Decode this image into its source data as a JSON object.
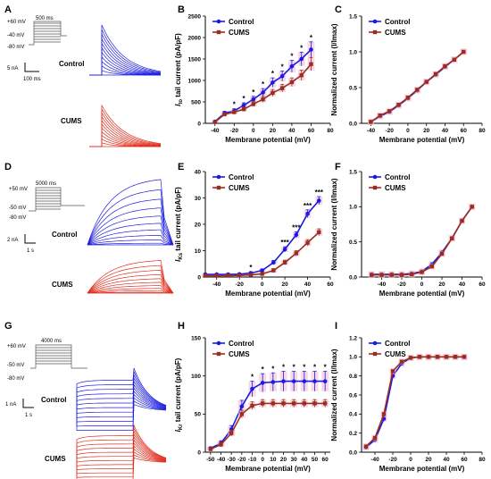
{
  "panels": [
    "A",
    "B",
    "C",
    "D",
    "E",
    "F",
    "G",
    "H",
    "I"
  ],
  "colors": {
    "control": "#1a1ae6",
    "cums": "#9b2d1f",
    "control_trace": "#2020e0",
    "cums_trace": "#e03020",
    "band": "#f4b8d0"
  },
  "traces": [
    {
      "protocol": {
        "v1": "+60 mV",
        "v2": "-40 mV",
        "v3": "-80 mV",
        "duration": "500 ms"
      },
      "scalebar": {
        "y": "5 nA",
        "x": "100 ms"
      },
      "group_labels": [
        "Control",
        "CUMS"
      ]
    },
    {
      "protocol": {
        "v1": "+50 mV",
        "v2": "-50 mV",
        "v3": "-80 mV",
        "duration": "5000 ms"
      },
      "scalebar": {
        "y": "2 nA",
        "x": "1 s"
      },
      "group_labels": [
        "Control",
        "CUMS"
      ]
    },
    {
      "protocol": {
        "v1": "+60 mV",
        "v2": "-50 mV",
        "v3": "-80 mV",
        "duration": "4000 ms"
      },
      "scalebar": {
        "y": "1 nA",
        "x": "1 s"
      },
      "group_labels": [
        "Control",
        "CUMS"
      ]
    }
  ],
  "chart_data": [
    {
      "id": "B",
      "type": "line",
      "ylabel_main": "I",
      "ylabel_sub": "to",
      "ylabel_rest": " tail current (pA/pF)",
      "xlabel": "Membrane potential (mV)",
      "xlim": [
        -50,
        80
      ],
      "ylim": [
        0,
        2500
      ],
      "xticks": [
        -40,
        -20,
        0,
        20,
        40,
        60,
        80
      ],
      "yticks": [
        0,
        500,
        1000,
        1500,
        2000,
        2500
      ],
      "x": [
        -40,
        -30,
        -20,
        -10,
        0,
        10,
        20,
        30,
        40,
        50,
        60
      ],
      "series": [
        {
          "name": "Control",
          "values": [
            40,
            240,
            290,
            420,
            560,
            720,
            950,
            1100,
            1330,
            1500,
            1720
          ],
          "err": [
            20,
            40,
            50,
            60,
            70,
            90,
            110,
            120,
            140,
            160,
            180
          ]
        },
        {
          "name": "CUMS",
          "values": [
            30,
            210,
            260,
            330,
            450,
            560,
            710,
            820,
            960,
            1120,
            1380
          ],
          "err": [
            15,
            30,
            40,
            50,
            60,
            70,
            80,
            90,
            100,
            120,
            150
          ]
        }
      ],
      "sig": [
        {
          "x": -20,
          "label": "*"
        },
        {
          "x": -10,
          "label": "*"
        },
        {
          "x": 0,
          "label": "*"
        },
        {
          "x": 10,
          "label": "*"
        },
        {
          "x": 20,
          "label": "*"
        },
        {
          "x": 30,
          "label": "*"
        },
        {
          "x": 40,
          "label": "*"
        },
        {
          "x": 50,
          "label": "*"
        },
        {
          "x": 60,
          "label": "*"
        }
      ],
      "legend": "top-left"
    },
    {
      "id": "C",
      "type": "line",
      "ylabel": "Normalized current (I/Imax)",
      "xlabel": "Membrane potential (mV)",
      "xlim": [
        -50,
        80
      ],
      "ylim": [
        0,
        1.5
      ],
      "xticks": [
        -40,
        -20,
        0,
        20,
        40,
        60,
        80
      ],
      "yticks": [
        0.0,
        0.5,
        1.0,
        1.5
      ],
      "ydec": 1,
      "x": [
        -40,
        -30,
        -20,
        -10,
        0,
        10,
        20,
        30,
        40,
        50,
        60
      ],
      "series": [
        {
          "name": "Control",
          "values": [
            0.02,
            0.1,
            0.16,
            0.25,
            0.35,
            0.46,
            0.58,
            0.68,
            0.79,
            0.89,
            1.0
          ]
        },
        {
          "name": "CUMS",
          "values": [
            0.02,
            0.11,
            0.17,
            0.26,
            0.36,
            0.47,
            0.58,
            0.69,
            0.8,
            0.89,
            1.0
          ]
        }
      ],
      "legend": "top-left"
    },
    {
      "id": "E",
      "type": "line",
      "ylabel_main": "I",
      "ylabel_sub": "Ks",
      "ylabel_rest": " tail current (pA/pF)",
      "xlabel": "Membrane potential (mV)",
      "xlim": [
        -50,
        60
      ],
      "ylim": [
        0,
        40
      ],
      "xticks": [
        -40,
        -20,
        0,
        20,
        40,
        60
      ],
      "yticks": [
        0,
        10,
        20,
        30,
        40
      ],
      "x": [
        -50,
        -40,
        -30,
        -20,
        -10,
        0,
        10,
        20,
        30,
        40,
        50
      ],
      "series": [
        {
          "name": "Control",
          "values": [
            1.0,
            1.0,
            1.0,
            1.1,
            1.5,
            2.5,
            5.5,
            10.5,
            16,
            24,
            29
          ],
          "err": [
            0.4,
            0.4,
            0.4,
            0.4,
            0.5,
            0.6,
            0.8,
            1.0,
            1.2,
            1.5,
            1.5
          ]
        },
        {
          "name": "CUMS",
          "values": [
            0.5,
            0.5,
            0.5,
            0.6,
            0.8,
            1.2,
            2.5,
            5.5,
            9,
            13,
            17
          ],
          "err": [
            0.3,
            0.3,
            0.3,
            0.3,
            0.4,
            0.5,
            0.7,
            0.9,
            1.0,
            1.2,
            1.3
          ]
        }
      ],
      "sig": [
        {
          "x": -10,
          "label": "*"
        },
        {
          "x": 20,
          "label": "***"
        },
        {
          "x": 30,
          "label": "***"
        },
        {
          "x": 40,
          "label": "***"
        },
        {
          "x": 50,
          "label": "***"
        }
      ],
      "legend": "top-left"
    },
    {
      "id": "F",
      "type": "line",
      "ylabel": "Normalized current (I/Imax)",
      "xlabel": "Membrane potential (mV)",
      "xlim": [
        -60,
        60
      ],
      "ylim": [
        0,
        1.5
      ],
      "xticks": [
        -40,
        -20,
        0,
        20,
        40,
        60
      ],
      "yticks": [
        0.0,
        0.5,
        1.0,
        1.5
      ],
      "ydec": 1,
      "x": [
        -50,
        -40,
        -30,
        -20,
        -10,
        0,
        10,
        20,
        30,
        40,
        50
      ],
      "series": [
        {
          "name": "Control",
          "values": [
            0.04,
            0.04,
            0.04,
            0.04,
            0.05,
            0.08,
            0.18,
            0.35,
            0.55,
            0.8,
            1.0
          ]
        },
        {
          "name": "CUMS",
          "values": [
            0.03,
            0.03,
            0.03,
            0.03,
            0.04,
            0.07,
            0.15,
            0.33,
            0.55,
            0.8,
            1.0
          ]
        }
      ],
      "legend": "top-left"
    },
    {
      "id": "H",
      "type": "line",
      "ylabel_main": "I",
      "ylabel_sub": "Kr",
      "ylabel_rest": " tail current (pA/pF)",
      "xlabel": "Membrane potential (mV)",
      "xlim": [
        -55,
        65
      ],
      "ylim": [
        0,
        150
      ],
      "xticks": [
        -50,
        -40,
        -30,
        -20,
        -10,
        0,
        10,
        20,
        30,
        40,
        50,
        60
      ],
      "yticks": [
        0,
        50,
        100,
        150
      ],
      "x": [
        -50,
        -40,
        -30,
        -20,
        -10,
        0,
        10,
        20,
        30,
        40,
        50,
        60
      ],
      "series": [
        {
          "name": "Control",
          "values": [
            5,
            12,
            30,
            60,
            83,
            91,
            92,
            93,
            93,
            93,
            93,
            93
          ],
          "err": [
            2,
            3,
            5,
            8,
            10,
            12,
            12,
            13,
            13,
            13,
            13,
            13
          ]
        },
        {
          "name": "CUMS",
          "values": [
            4,
            10,
            25,
            50,
            61,
            64,
            64,
            64,
            64,
            64,
            64,
            64
          ],
          "err": [
            2,
            3,
            4,
            5,
            5,
            5,
            5,
            5,
            5,
            5,
            5,
            5
          ]
        }
      ],
      "sig": [
        {
          "x": -10,
          "label": "*"
        },
        {
          "x": 0,
          "label": "*"
        },
        {
          "x": 10,
          "label": "*"
        },
        {
          "x": 20,
          "label": "*"
        },
        {
          "x": 30,
          "label": "*"
        },
        {
          "x": 40,
          "label": "*"
        },
        {
          "x": 50,
          "label": "*"
        },
        {
          "x": 60,
          "label": "*"
        }
      ],
      "legend": "top-left"
    },
    {
      "id": "I",
      "type": "line",
      "ylabel": "Normalized current (I/Imax)",
      "xlabel": "Membrane potential (mV)",
      "xlim": [
        -55,
        80
      ],
      "ylim": [
        0,
        1.2
      ],
      "xticks": [
        -40,
        -20,
        0,
        20,
        40,
        60,
        80
      ],
      "yticks": [
        0.0,
        0.2,
        0.4,
        0.6,
        0.8,
        1.0,
        1.2
      ],
      "ydec": 1,
      "x": [
        -50,
        -40,
        -30,
        -20,
        -10,
        0,
        10,
        20,
        30,
        40,
        50,
        60
      ],
      "series": [
        {
          "name": "Control",
          "values": [
            0.05,
            0.13,
            0.35,
            0.8,
            0.93,
            0.99,
            1.0,
            1.0,
            1.0,
            1.0,
            1.0,
            1.0
          ]
        },
        {
          "name": "CUMS",
          "values": [
            0.06,
            0.15,
            0.4,
            0.85,
            0.95,
            0.99,
            1.0,
            1.0,
            1.0,
            1.0,
            1.0,
            1.0
          ]
        }
      ],
      "legend": "top-left"
    }
  ]
}
